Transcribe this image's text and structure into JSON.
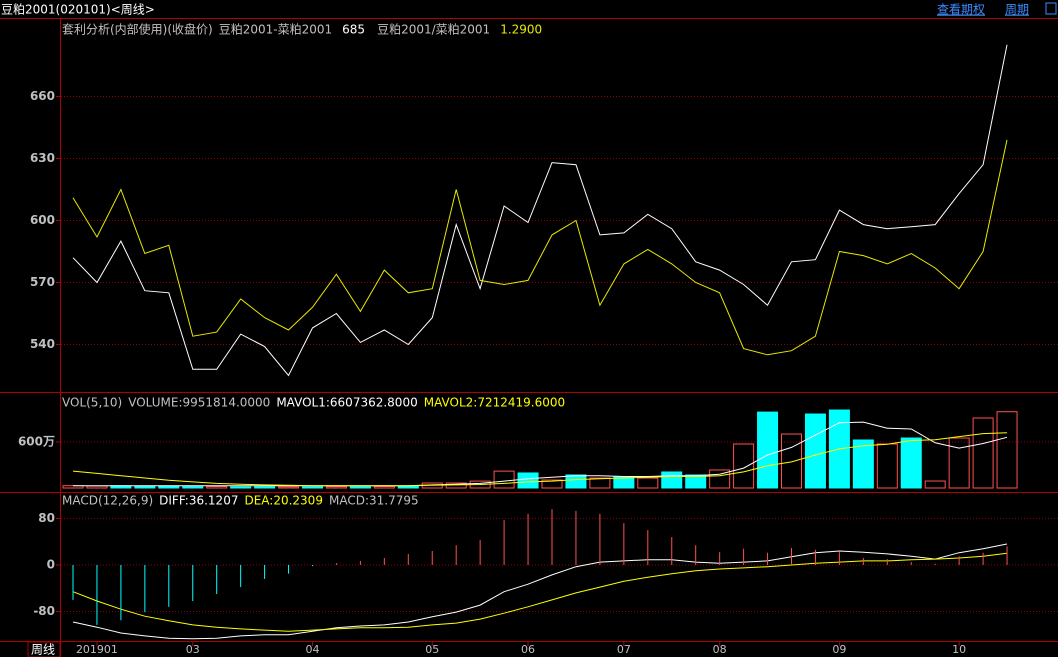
{
  "header": {
    "title": "豆粕2001(020101)<周线>",
    "links": [
      "查看期权",
      "周期"
    ]
  },
  "footer": {
    "period": "周线"
  },
  "chart_data": [
    {
      "type": "line",
      "title": "套利分析(内部使用)(收盘价)",
      "series": [
        {
          "name": "豆粕2001-菜粕2001",
          "legend_value": "685",
          "color": "#ffffff",
          "values": [
            582,
            570,
            590,
            566,
            565,
            528,
            528,
            545,
            539,
            525,
            548,
            555,
            541,
            547,
            540,
            553,
            598,
            567,
            607,
            599,
            628,
            627,
            593,
            594,
            603,
            596,
            580,
            576,
            569,
            559,
            580,
            581,
            605,
            598,
            596,
            597,
            598,
            613,
            627,
            685
          ]
        },
        {
          "name": "豆粕2001/菜粕2001",
          "legend_value": "1.2900",
          "color": "#e8e800",
          "values": [
            611,
            592,
            615,
            584,
            588,
            544,
            546,
            562,
            553,
            547,
            558,
            574,
            556,
            576,
            565,
            567,
            615,
            571,
            569,
            571,
            593,
            600,
            559,
            579,
            586,
            579,
            570,
            565,
            538,
            535,
            537,
            544,
            585,
            583,
            579,
            584,
            577,
            567,
            585,
            639
          ]
        }
      ],
      "ylim": [
        517,
        697
      ],
      "yticks": [
        540,
        570,
        600,
        630,
        660
      ],
      "grid": true
    },
    {
      "type": "combo",
      "title": "VOL(5,10)",
      "series": [
        {
          "name": "VOLUME:9951814.0000",
          "type": "bar",
          "color": "#c0c0c0",
          "values": [
            300000,
            250000,
            280000,
            200000,
            220000,
            180000,
            200000,
            150000,
            170000,
            160000,
            150000,
            180000,
            160000,
            200000,
            230000,
            650000,
            650000,
            900000,
            2200000,
            1960000,
            1040000,
            1700000,
            1300000,
            1430000,
            1300000,
            2090000,
            1700000,
            2350000,
            5740000,
            9900000,
            7040000,
            9650000,
            10170000,
            6260000,
            5740000,
            6520000,
            910000,
            6520000,
            9130000,
            9951814
          ],
          "colors": [
            "#ff5050",
            "#ff5050",
            "#00ffff",
            "#00ffff",
            "#00ffff",
            "#00ffff",
            "#ff5050",
            "#00ffff",
            "#00ffff",
            "#ff5050",
            "#00ffff",
            "#ff5050",
            "#00ffff",
            "#ff5050",
            "#00ffff",
            "#ff5050",
            "#ff5050",
            "#ff5050",
            "#ff5050",
            "#00ffff",
            "#ff5050",
            "#00ffff",
            "#ff5050",
            "#00ffff",
            "#ff5050",
            "#00ffff",
            "#00ffff",
            "#ff5050",
            "#ff5050",
            "#00ffff",
            "#ff5050",
            "#00ffff",
            "#00ffff",
            "#00ffff",
            "#ff5050",
            "#00ffff",
            "#ff5050",
            "#ff5050",
            "#ff5050",
            "#ff5050"
          ]
        },
        {
          "name": "MAVOL1:6607362.8000",
          "type": "line",
          "color": "#ffffff",
          "values": [
            300000,
            300000,
            300000,
            300000,
            300000,
            300000,
            300000,
            300000,
            300000,
            300000,
            300000,
            300000,
            300000,
            300000,
            300000,
            400000,
            500000,
            600000,
            900000,
            1200000,
            1400000,
            1600000,
            1600000,
            1500000,
            1500000,
            1600000,
            1600000,
            1800000,
            2600000,
            4300000,
            5300000,
            6900000,
            8500000,
            8600000,
            7800000,
            7700000,
            5900000,
            5200000,
            5800000,
            6607362.8
          ]
        },
        {
          "name": "MAVOL2:7212419.6000",
          "type": "line",
          "color": "#ffff00",
          "values": [
            2200000,
            1900000,
            1600000,
            1300000,
            1000000,
            800000,
            600000,
            500000,
            400000,
            350000,
            300000,
            300000,
            300000,
            300000,
            300000,
            350000,
            400000,
            450000,
            600000,
            800000,
            900000,
            1100000,
            1200000,
            1300000,
            1400000,
            1500000,
            1500000,
            1600000,
            2100000,
            2900000,
            3400000,
            4300000,
            5100000,
            5500000,
            5700000,
            6200000,
            6300000,
            6700000,
            7100000,
            7212419.6
          ]
        }
      ],
      "ylim": [
        0,
        12260000
      ],
      "yticks": [
        {
          "value": 6000000,
          "label": "600万"
        }
      ],
      "grid": true
    },
    {
      "type": "combo",
      "title": "MACD(12,26,9)",
      "categories": [
        null,
        "201901",
        null,
        null,
        null,
        "03",
        null,
        null,
        null,
        null,
        "04",
        null,
        null,
        null,
        null,
        "05",
        null,
        null,
        null,
        "06",
        null,
        null,
        null,
        "07",
        null,
        null,
        null,
        "08",
        null,
        null,
        null,
        null,
        "09",
        null,
        null,
        null,
        null,
        "10",
        null,
        null
      ],
      "series": [
        {
          "name": "DIFF:36.1207",
          "type": "line",
          "color": "#ffffff",
          "values": [
            -98,
            -107,
            -117,
            -122,
            -126,
            -127,
            -126,
            -122,
            -120,
            -120,
            -114,
            -108,
            -105,
            -103,
            -98,
            -89,
            -81,
            -69,
            -46,
            -33,
            -17,
            -3,
            5,
            7,
            9,
            9,
            5,
            3,
            5,
            7,
            14,
            21,
            24,
            22,
            19,
            15,
            10,
            21,
            28,
            36.1207
          ]
        },
        {
          "name": "DEA:20.2309",
          "type": "line",
          "color": "#ffff00",
          "values": [
            -46,
            -62,
            -76,
            -88,
            -96,
            -103,
            -107,
            -110,
            -112,
            -114,
            -112,
            -110,
            -108,
            -108,
            -107,
            -103,
            -100,
            -93,
            -83,
            -72,
            -60,
            -48,
            -38,
            -28,
            -21,
            -15,
            -10,
            -7,
            -5,
            -3,
            0,
            3,
            5,
            7,
            7,
            9,
            10,
            12,
            15,
            20.2309
          ]
        },
        {
          "name": "MACD:31.7795",
          "type": "bar",
          "color": "#ff5050",
          "negative_color": "#00ffff",
          "values": [
            -60,
            -103,
            -95,
            -81,
            -72,
            -62,
            -50,
            -38,
            -24,
            -15,
            -2,
            3,
            7,
            12,
            19,
            24,
            34,
            43,
            77,
            88,
            96,
            93,
            88,
            72,
            60,
            48,
            34,
            22,
            28,
            21,
            29,
            26,
            22,
            12,
            10,
            5,
            2,
            15,
            21,
            31.7795
          ]
        }
      ],
      "ylim": [
        -129,
        122
      ],
      "yticks": [
        80,
        0,
        -80
      ],
      "grid": true
    }
  ]
}
